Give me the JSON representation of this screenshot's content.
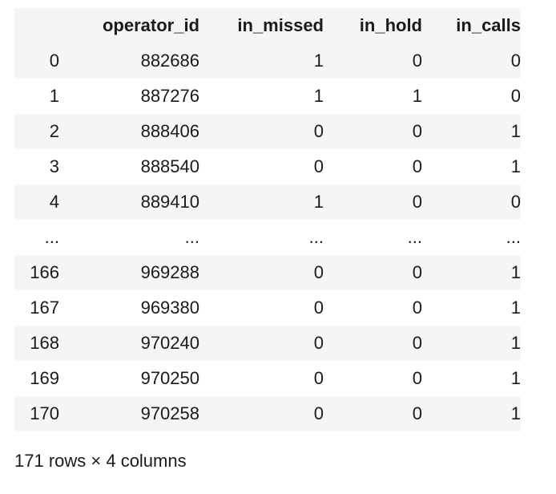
{
  "table": {
    "columns": [
      "",
      "operator_id",
      "in_missed",
      "in_hold",
      "in_calls"
    ],
    "rows": [
      [
        "0",
        "882686",
        "1",
        "0",
        "0"
      ],
      [
        "1",
        "887276",
        "1",
        "1",
        "0"
      ],
      [
        "2",
        "888406",
        "0",
        "0",
        "1"
      ],
      [
        "3",
        "888540",
        "0",
        "0",
        "1"
      ],
      [
        "4",
        "889410",
        "1",
        "0",
        "0"
      ],
      [
        "...",
        "...",
        "...",
        "...",
        "..."
      ],
      [
        "166",
        "969288",
        "0",
        "0",
        "1"
      ],
      [
        "167",
        "969380",
        "0",
        "0",
        "1"
      ],
      [
        "168",
        "970240",
        "0",
        "0",
        "1"
      ],
      [
        "169",
        "970250",
        "0",
        "0",
        "1"
      ],
      [
        "170",
        "970258",
        "0",
        "0",
        "1"
      ]
    ]
  },
  "footer": {
    "shape_text": "171 rows × 4 columns"
  },
  "colors": {
    "stripe": "#f5f5f5",
    "text": "#1a1a1a",
    "background": "#ffffff"
  }
}
